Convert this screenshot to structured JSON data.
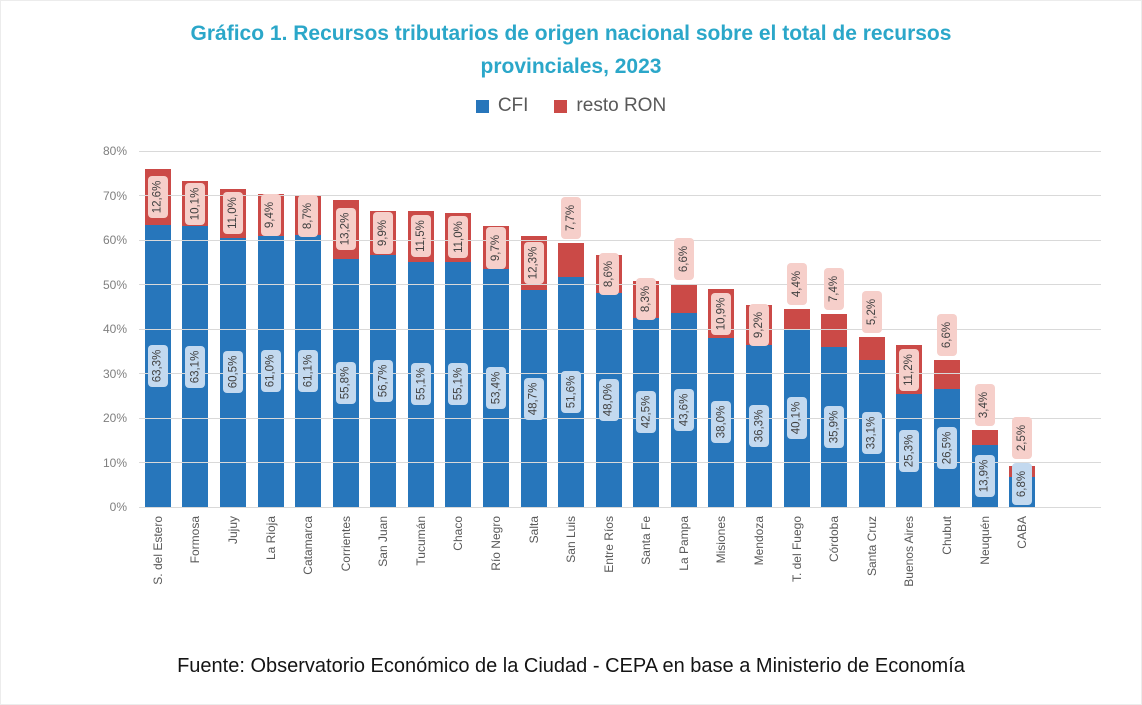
{
  "title": {
    "line1": "Gráfico 1. Recursos tributarios de origen nacional sobre el total de recursos",
    "line2": "provinciales, 2023"
  },
  "legend": [
    {
      "label": "CFI",
      "color": "#2776bb"
    },
    {
      "label": "resto RON",
      "color": "#cb4a47"
    }
  ],
  "footer": "Fuente: Observatorio Económico de la Ciudad - CEPA en base a Ministerio de Economía",
  "colors": {
    "title": "#2ba7c9",
    "cfi_bar": "#2776bb",
    "ron_bar": "#cb4a47",
    "cfi_label_bg": "#c3d9ef",
    "ron_label_bg": "#f6cfca",
    "gridline": "#d9d9d9",
    "axis_text": "#595959"
  },
  "chart_data": {
    "type": "bar",
    "stacked": true,
    "grid": true,
    "legend_position": "top",
    "ylim": [
      0,
      80
    ],
    "yticks": [
      "0%",
      "10%",
      "20%",
      "30%",
      "40%",
      "50%",
      "60%",
      "70%",
      "80%"
    ],
    "categories": [
      "S. del Estero",
      "Formosa",
      "Jujuy",
      "La Rioja",
      "Catamarca",
      "Corrientes",
      "San Juan",
      "Tucumán",
      "Chaco",
      "Río Negro",
      "Salta",
      "San Luis",
      "Entre Ríos",
      "Santa Fe",
      "La Pampa",
      "Misiones",
      "Mendoza",
      "T. del Fuego",
      "Córdoba",
      "Santa Cruz",
      "Buenos Aires",
      "Chubut",
      "Neuquén",
      "CABA"
    ],
    "series": [
      {
        "name": "CFI",
        "color": "#2776bb",
        "label_bg": "#c3d9ef",
        "values": [
          63.3,
          63.1,
          60.5,
          61.0,
          61.1,
          55.8,
          56.7,
          55.1,
          55.1,
          53.4,
          48.7,
          51.6,
          48.0,
          42.5,
          43.6,
          38.0,
          36.3,
          40.1,
          35.9,
          33.1,
          25.3,
          26.5,
          13.9,
          6.8
        ],
        "labels": [
          "63,3%",
          "63,1%",
          "60,5%",
          "61,0%",
          "61,1%",
          "55,8%",
          "56,7%",
          "55,1%",
          "55,1%",
          "53,4%",
          "48,7%",
          "51,6%",
          "48,0%",
          "42,5%",
          "43,6%",
          "38,0%",
          "36,3%",
          "40,1%",
          "35,9%",
          "33,1%",
          "25,3%",
          "26,5%",
          "13,9%",
          "6,8%"
        ]
      },
      {
        "name": "resto RON",
        "color": "#cb4a47",
        "label_bg": "#f6cfca",
        "values": [
          12.6,
          10.1,
          11.0,
          9.4,
          8.7,
          13.2,
          9.9,
          11.5,
          11.0,
          9.7,
          12.3,
          7.7,
          8.6,
          8.3,
          6.6,
          10.9,
          9.2,
          4.4,
          7.4,
          5.2,
          11.2,
          6.6,
          3.4,
          2.5
        ],
        "labels": [
          "12,6%",
          "10,1%",
          "11,0%",
          "9,4%",
          "8,7%",
          "13,2%",
          "9,9%",
          "11,5%",
          "11,0%",
          "9,7%",
          "12,3%",
          "7,7%",
          "8,6%",
          "8,3%",
          "6,6%",
          "10,9%",
          "9,2%",
          "4,4%",
          "7,4%",
          "5,2%",
          "11,2%",
          "6,6%",
          "3,4%",
          "2,5%"
        ]
      }
    ]
  }
}
